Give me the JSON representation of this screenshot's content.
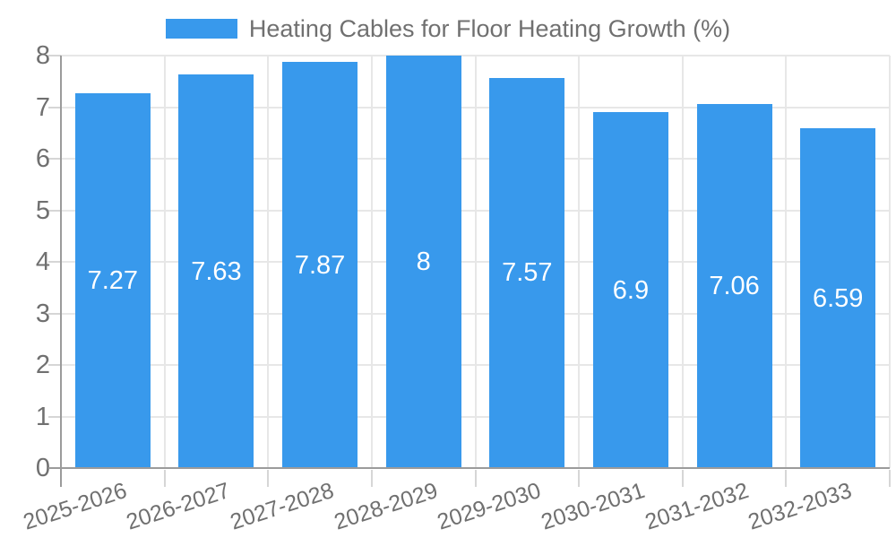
{
  "chart_data": {
    "type": "bar",
    "title": "Heating Cables for Floor Heating Growth (%)",
    "categories": [
      "2025-2026",
      "2026-2027",
      "2027-2028",
      "2028-2029",
      "2029-2030",
      "2030-2031",
      "2031-2032",
      "2032-2033"
    ],
    "values": [
      7.27,
      7.63,
      7.87,
      8,
      7.57,
      6.9,
      7.06,
      6.59
    ],
    "value_labels": [
      "7.27",
      "7.63",
      "7.87",
      "8",
      "7.57",
      "6.9",
      "7.06",
      "6.59"
    ],
    "xlabel": "",
    "ylabel": "",
    "ylim": [
      0,
      8
    ],
    "yticks": [
      0,
      1,
      2,
      3,
      4,
      5,
      6,
      7,
      8
    ],
    "grid": true,
    "legend_position": "top-center",
    "x_label_rotation_deg": -18,
    "colors": {
      "bar": "#3899EC",
      "value_label": "#FFFFFF",
      "axis_text": "#707070",
      "grid_line": "#E7E7E7",
      "tick_line": "#D6D6D6",
      "axis_line": "#9B9B9B",
      "background": "#FFFFFF"
    }
  }
}
